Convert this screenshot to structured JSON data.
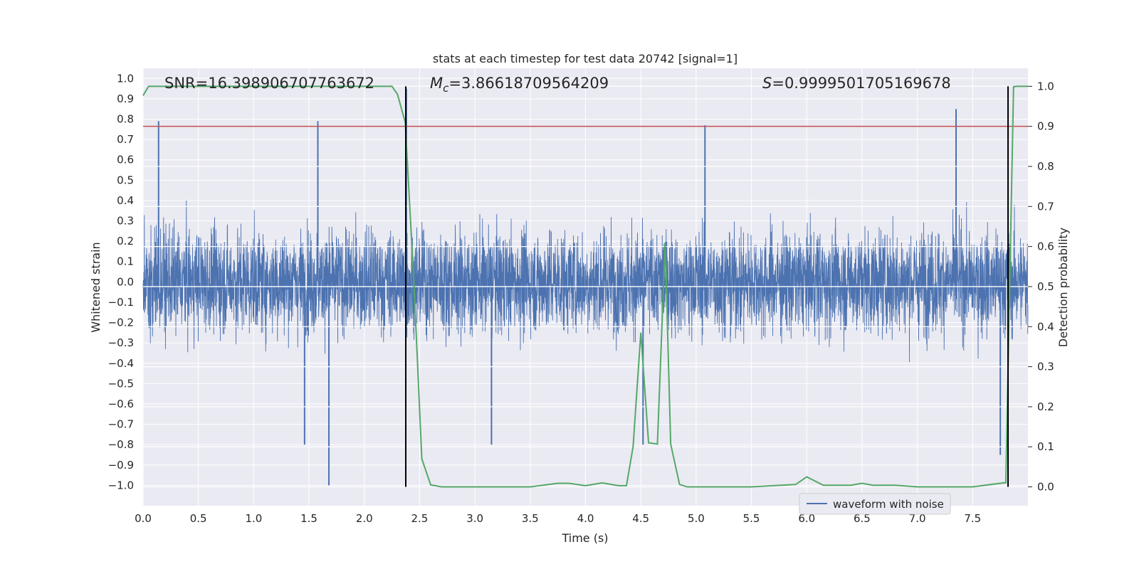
{
  "chart_data": {
    "type": "line",
    "title": "stats at each timestep for test data 20742 [signal=1]",
    "xlabel": "Time (s)",
    "ylabel": "Whitened strain",
    "y2label": "Detection probability",
    "xlim": [
      0.0,
      8.0
    ],
    "ylim": [
      -1.1,
      1.05
    ],
    "y2lim": [
      -0.047,
      1.045
    ],
    "xticks": [
      "0.0",
      "0.5",
      "1.0",
      "1.5",
      "2.0",
      "2.5",
      "3.0",
      "3.5",
      "4.0",
      "4.5",
      "5.0",
      "5.5",
      "6.0",
      "6.5",
      "7.0",
      "7.5"
    ],
    "yticks": [
      "1.0",
      "0.9",
      "0.8",
      "0.7",
      "0.6",
      "0.5",
      "0.4",
      "0.3",
      "0.2",
      "0.1",
      "0.0",
      "−0.1",
      "−0.2",
      "−0.3",
      "−0.4",
      "−0.5",
      "−0.6",
      "−0.7",
      "−0.8",
      "−0.9",
      "−1.0"
    ],
    "y2ticks": [
      "1.0",
      "0.9",
      "0.8",
      "0.7",
      "0.6",
      "0.5",
      "0.4",
      "0.3",
      "0.2",
      "0.1",
      "0.0"
    ],
    "grid": true,
    "legend": {
      "position": "lower-right",
      "entries": [
        "waveform with noise"
      ]
    },
    "annotations": {
      "snr": "SNR=16.398906707763672",
      "mc_symbol": "M",
      "mc_sub": "c",
      "mc_value": "=3.86618709564209",
      "s_symbol": "S",
      "s_value": "=0.9999501705169678"
    },
    "threshold": {
      "y2": 0.9,
      "color": "#c44e52"
    },
    "vertical_markers": [
      2.375,
      7.82
    ],
    "series": [
      {
        "name": "waveform with noise",
        "axis": "left",
        "kind": "noise",
        "color": "#4c72b0",
        "x_range": [
          0.0,
          8.0
        ],
        "typical_amplitude": 0.32,
        "notable_peaks": [
          {
            "x": 0.14,
            "y": 0.79
          },
          {
            "x": 1.58,
            "y": 0.79
          },
          {
            "x": 2.38,
            "y": 0.95
          },
          {
            "x": 5.08,
            "y": 0.77
          },
          {
            "x": 7.35,
            "y": 0.85
          },
          {
            "x": 1.68,
            "y": -1.0
          },
          {
            "x": 1.46,
            "y": -0.8
          },
          {
            "x": 3.15,
            "y": -0.8
          },
          {
            "x": 4.52,
            "y": -0.8
          },
          {
            "x": 7.75,
            "y": -0.85
          }
        ]
      },
      {
        "name": "",
        "axis": "right",
        "color": "#55a868",
        "x": [
          0.0,
          0.05,
          0.1,
          0.5,
          1.0,
          1.5,
          2.0,
          2.25,
          2.3,
          2.37,
          2.45,
          2.52,
          2.6,
          2.7,
          3.0,
          3.5,
          3.75,
          3.85,
          4.0,
          4.15,
          4.3,
          4.37,
          4.43,
          4.5,
          4.57,
          4.65,
          4.72,
          4.77,
          4.85,
          4.92,
          5.0,
          5.5,
          5.9,
          6.0,
          6.05,
          6.15,
          6.4,
          6.5,
          6.6,
          6.8,
          7.0,
          7.5,
          7.78,
          7.8,
          7.87,
          7.9,
          8.0
        ],
        "y": [
          0.977,
          1.0,
          1.0,
          1.0,
          1.0,
          1.0,
          1.0,
          1.0,
          0.98,
          0.91,
          0.5,
          0.07,
          0.005,
          0.0,
          0.0,
          0.0,
          0.009,
          0.009,
          0.003,
          0.01,
          0.003,
          0.003,
          0.1,
          0.385,
          0.11,
          0.107,
          0.61,
          0.107,
          0.006,
          0.0,
          0.0,
          0.0,
          0.006,
          0.025,
          0.018,
          0.004,
          0.004,
          0.009,
          0.004,
          0.004,
          0.0,
          0.0,
          0.01,
          0.01,
          0.999,
          1.0,
          1.0
        ]
      }
    ]
  }
}
